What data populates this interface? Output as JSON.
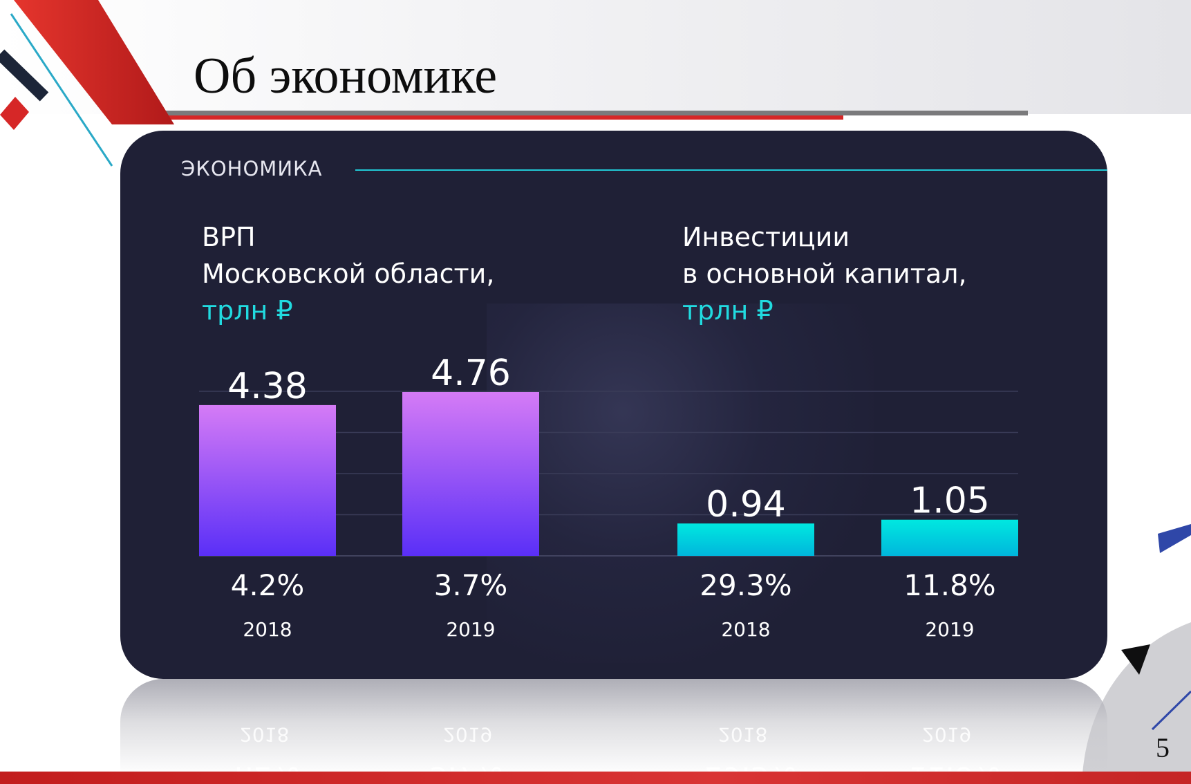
{
  "slide": {
    "title": "Об экономике",
    "page_number": "5"
  },
  "card": {
    "section_label": "ЭКОНОМИКА",
    "grp_title_lines": [
      "ВРП",
      "Московской области,"
    ],
    "grp_unit": "трлн ₽",
    "inv_title_lines": [
      "Инвестиции",
      "в основной капитал,"
    ],
    "inv_unit": "трлн ₽"
  },
  "colors": {
    "card_background": "#1f2036",
    "accent_cyan": "#21dbe0",
    "grp_bar_top": "#d57bf6",
    "grp_bar_bottom": "#5a2ff7",
    "inv_bar_top": "#00e8e0",
    "inv_bar_bottom": "#00b6dc",
    "brand_red": "#d62727"
  },
  "chart_data": [
    {
      "type": "bar",
      "categories": [
        "2018",
        "2019"
      ],
      "values": [
        4.38,
        4.76
      ],
      "value_labels": [
        "4.38",
        "4.76"
      ],
      "growth_labels": [
        "4.2%",
        "3.7%"
      ],
      "title": "ВРП Московской области, трлн ₽",
      "ylim": [
        0,
        4.76
      ],
      "grid": true
    },
    {
      "type": "bar",
      "categories": [
        "2018",
        "2019"
      ],
      "values": [
        0.94,
        1.05
      ],
      "value_labels": [
        "0.94",
        "1.05"
      ],
      "growth_labels": [
        "29.3%",
        "11.8%"
      ],
      "title": "Инвестиции в основной капитал, трлн ₽",
      "ylim": [
        0,
        4.76
      ],
      "grid": true
    }
  ]
}
